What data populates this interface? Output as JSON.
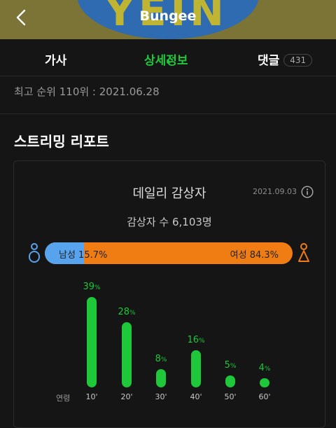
{
  "header": {
    "title": "Bungee",
    "art_text": "YEIN"
  },
  "tabs": [
    {
      "label": "가사",
      "active": false
    },
    {
      "label": "상세정보",
      "active": true
    },
    {
      "label": "댓글",
      "active": false,
      "badge": "431"
    }
  ],
  "rank_line": "최고 순위 110위 : 2021.06.28",
  "section_title": "스트리밍 리포트",
  "card": {
    "title": "데일리 감상자",
    "date": "2021.09.03",
    "count_text": "감상자 수 6,103명",
    "gender": {
      "male_label": "남성 15.7%",
      "female_label": "여성 84.3%",
      "male_share": 0.157,
      "male_color": "#58a3ee",
      "female_color": "#f07d14"
    }
  },
  "chart_data": {
    "type": "bar",
    "xlabel": "연령",
    "categories": [
      "10'",
      "20'",
      "30'",
      "40'",
      "50'",
      "60'"
    ],
    "values": [
      39,
      28,
      8,
      16,
      5,
      4
    ],
    "unit": "%",
    "color": "#1ec83a"
  }
}
